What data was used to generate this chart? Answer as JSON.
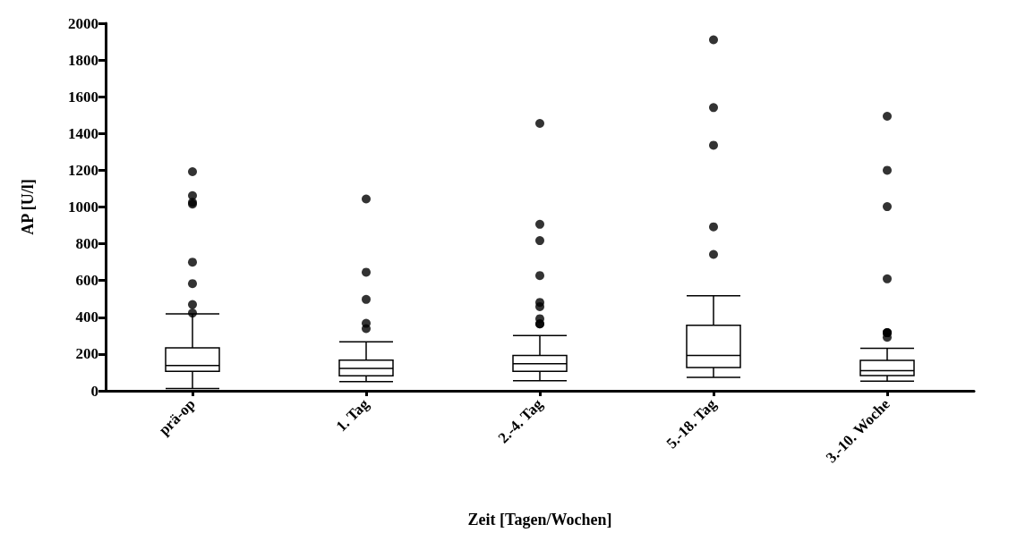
{
  "chart_data": {
    "type": "box",
    "xlabel": "Zeit [Tagen/Wochen]",
    "ylabel": "AP [U/l]",
    "categories": [
      "prä-op",
      "1. Tag",
      "2.-4. Tag",
      "5.-18. Tag",
      "3.-10. Woche"
    ],
    "color": "#000000",
    "boxes": [
      {
        "low": 12,
        "q1": 106,
        "median": 137,
        "q3": 234,
        "high": 419,
        "outliers": [
          1192,
          1062,
          1025,
          1016,
          700,
          583,
          469,
          423
        ]
      },
      {
        "low": 50,
        "q1": 81,
        "median": 122,
        "q3": 167,
        "high": 266,
        "outliers": [
          1044,
          645,
          497,
          367,
          338
        ]
      },
      {
        "low": 55,
        "q1": 106,
        "median": 147,
        "q3": 192,
        "high": 300,
        "outliers": [
          1455,
          906,
          817,
          627,
          481,
          458,
          392,
          364,
          364
        ]
      },
      {
        "low": 73,
        "q1": 127,
        "median": 192,
        "q3": 356,
        "high": 517,
        "outliers": [
          1910,
          1541,
          1336,
          892,
          742
        ]
      },
      {
        "low": 52,
        "q1": 83,
        "median": 109,
        "q3": 166,
        "high": 231,
        "outliers": [
          1494,
          1200,
          1002,
          609,
          316,
          291,
          316,
          316
        ]
      }
    ],
    "ylim": [
      0,
      2000
    ],
    "yticks": [
      0,
      200,
      400,
      600,
      800,
      1000,
      1200,
      1400,
      1600,
      1800,
      2000
    ],
    "grid": false,
    "marker": "circle"
  }
}
